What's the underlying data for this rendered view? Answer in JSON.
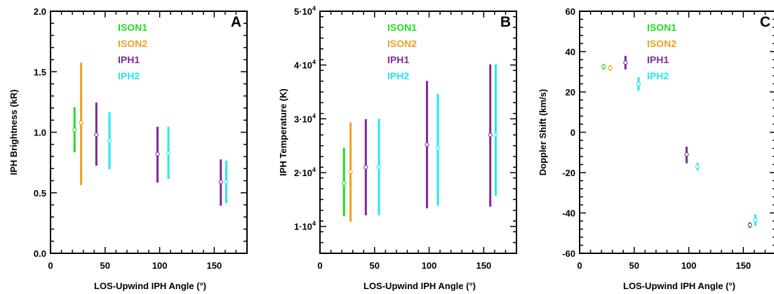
{
  "chart_data": [
    {
      "type": "scatter",
      "panel_label": "A",
      "xlabel": "LOS-Upwind IPH Angle (°)",
      "ylabel": "IPH Brightness (kR)",
      "xlim": [
        0,
        180
      ],
      "ylim": [
        0.0,
        2.0
      ],
      "xticks": [
        0,
        50,
        100,
        150
      ],
      "xtick_labels": [
        "0",
        "50",
        "100",
        "150"
      ],
      "yticks": [
        0.0,
        0.5,
        1.0,
        1.5,
        2.0
      ],
      "ytick_labels": [
        "0.0",
        "0.5",
        "1.0",
        "1.5",
        "2.0"
      ],
      "legend_position": "top-center",
      "series": [
        {
          "name": "ISON1",
          "color": "#22dd22",
          "points": [
            {
              "x": 22,
              "y": 1.02,
              "lo": 0.84,
              "hi": 1.2
            }
          ]
        },
        {
          "name": "ISON2",
          "color": "#f0a020",
          "points": [
            {
              "x": 28,
              "y": 1.08,
              "lo": 0.57,
              "hi": 1.57
            }
          ]
        },
        {
          "name": "IPH1",
          "color": "#7b2a9a",
          "points": [
            {
              "x": 42,
              "y": 0.98,
              "lo": 0.73,
              "hi": 1.24
            },
            {
              "x": 98,
              "y": 0.82,
              "lo": 0.59,
              "hi": 1.04
            },
            {
              "x": 156,
              "y": 0.59,
              "lo": 0.4,
              "hi": 0.77
            }
          ]
        },
        {
          "name": "IPH2",
          "color": "#22e8f2",
          "points": [
            {
              "x": 54,
              "y": 0.93,
              "lo": 0.7,
              "hi": 1.16
            },
            {
              "x": 108,
              "y": 0.83,
              "lo": 0.62,
              "hi": 1.04
            },
            {
              "x": 161,
              "y": 0.59,
              "lo": 0.42,
              "hi": 0.76
            }
          ]
        }
      ]
    },
    {
      "type": "scatter",
      "panel_label": "B",
      "xlabel": "LOS-Upwind IPH Angle (°)",
      "ylabel": "IPH Temperature (K)",
      "xlim": [
        0,
        180
      ],
      "ylim": [
        5000,
        50000
      ],
      "xticks": [
        0,
        50,
        100,
        150
      ],
      "xtick_labels": [
        "0",
        "50",
        "100",
        "150"
      ],
      "yticks": [
        10000,
        20000,
        30000,
        40000,
        50000
      ],
      "ytick_mantissa": [
        "1·10",
        "2·10",
        "3·10",
        "4·10",
        "5·10"
      ],
      "ytick_exponent": "4",
      "legend_position": "top-center",
      "series": [
        {
          "name": "ISON1",
          "color": "#22dd22",
          "points": [
            {
              "x": 22,
              "y": 18000,
              "lo": 12000,
              "hi": 24500
            }
          ]
        },
        {
          "name": "ISON2",
          "color": "#f0a020",
          "points": [
            {
              "x": 28,
              "y": 20200,
              "lo": 11000,
              "hi": 29200
            }
          ]
        },
        {
          "name": "IPH1",
          "color": "#7b2a9a",
          "points": [
            {
              "x": 42,
              "y": 21000,
              "lo": 12200,
              "hi": 29800
            },
            {
              "x": 98,
              "y": 25200,
              "lo": 13500,
              "hi": 36900
            },
            {
              "x": 156,
              "y": 27000,
              "lo": 13800,
              "hi": 40000
            }
          ]
        },
        {
          "name": "IPH2",
          "color": "#22e8f2",
          "points": [
            {
              "x": 54,
              "y": 21000,
              "lo": 12200,
              "hi": 29900
            },
            {
              "x": 108,
              "y": 24500,
              "lo": 14000,
              "hi": 34500
            },
            {
              "x": 161,
              "y": 27000,
              "lo": 15800,
              "hi": 40000
            }
          ]
        }
      ]
    },
    {
      "type": "scatter",
      "panel_label": "C",
      "xlabel": "LOS-Upwind IPH Angle (°)",
      "ylabel": "Doppler Shift (km/s)",
      "xlim": [
        0,
        180
      ],
      "ylim": [
        -60,
        60
      ],
      "xticks": [
        0,
        50,
        100,
        150
      ],
      "xtick_labels": [
        "0",
        "50",
        "100",
        "150"
      ],
      "yticks": [
        -60,
        -40,
        -20,
        0,
        20,
        40,
        60
      ],
      "ytick_labels": [
        "-60",
        "-40",
        "-20",
        "0",
        "20",
        "40",
        "60"
      ],
      "legend_position": "top-center",
      "series": [
        {
          "name": "ISON1",
          "color": "#22dd22",
          "points": [
            {
              "x": 22,
              "y": 32.5,
              "lo": 31.5,
              "hi": 33.5
            }
          ]
        },
        {
          "name": "ISON2",
          "color": "#f0a020",
          "points": [
            {
              "x": 28,
              "y": 31.8,
              "lo": 30.8,
              "hi": 32.8
            }
          ]
        },
        {
          "name": "IPH1",
          "color": "#7b2a9a",
          "points": [
            {
              "x": 42,
              "y": 34.5,
              "lo": 31.5,
              "hi": 37.5
            },
            {
              "x": 98,
              "y": -11.0,
              "lo": -15.0,
              "hi": -7.5
            },
            {
              "x": 156,
              "y": -46.0,
              "lo": -47.0,
              "hi": -45.0
            }
          ]
        },
        {
          "name": "IPH2",
          "color": "#22e8f2",
          "points": [
            {
              "x": 54,
              "y": 24.0,
              "lo": 21.0,
              "hi": 27.0
            },
            {
              "x": 108,
              "y": -17.0,
              "lo": -18.5,
              "hi": -15.5
            },
            {
              "x": 161,
              "y": -43.5,
              "lo": -46.0,
              "hi": -41.0
            }
          ]
        }
      ]
    }
  ]
}
